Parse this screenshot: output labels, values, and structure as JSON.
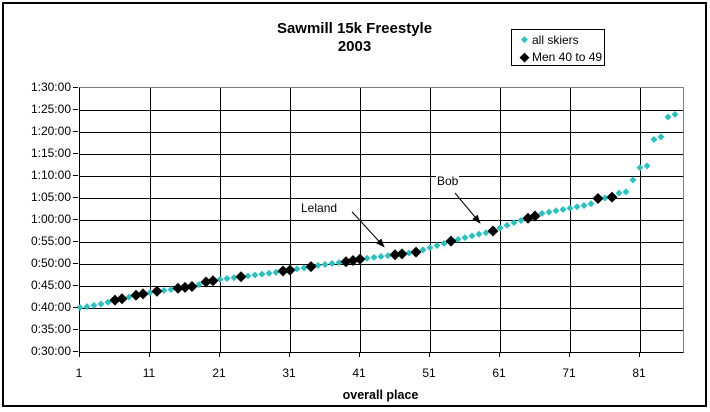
{
  "chart": {
    "title_line1": "Sawmill 15k Freestyle",
    "title_line2": "2003",
    "x_axis_title": "overall place",
    "legend": {
      "position": "top-right",
      "items": [
        {
          "label": "all skiers",
          "marker": "small-diamond",
          "color": "#2FBFBF"
        },
        {
          "label": "Men 40 to 49",
          "marker": "large-diamond",
          "color": "#000000"
        }
      ]
    },
    "colors": {
      "all_skiers": "#2FBFBF",
      "men_40_49": "#000000",
      "gridline": "#000000",
      "plot_border": "#808080",
      "frame_border": "#000000"
    }
  },
  "chart_data": {
    "type": "scatter",
    "title": "Sawmill 15k Freestyle 2003",
    "xlabel": "overall place",
    "ylabel": "",
    "grid": true,
    "legend_position": "top-right",
    "xlim": [
      1,
      87
    ],
    "ylim_minutes": [
      30,
      90
    ],
    "x_ticks": [
      1,
      11,
      21,
      31,
      41,
      51,
      61,
      71,
      81
    ],
    "y_tick_minutes": [
      90,
      85,
      80,
      75,
      70,
      65,
      60,
      55,
      50,
      45,
      40,
      35,
      30
    ],
    "y_tick_labels": [
      "1:30:00",
      "1:25:00",
      "1:20:00",
      "1:15:00",
      "1:10:00",
      "1:05:00",
      "1:00:00",
      "0:55:00",
      "0:50:00",
      "0:45:00",
      "0:40:00",
      "0:35:00",
      "0:30:00"
    ],
    "series": [
      {
        "name": "all skiers",
        "color": "#2FBFBF",
        "marker": "small-diamond",
        "x": [
          1,
          2,
          3,
          4,
          5,
          6,
          7,
          8,
          9,
          10,
          11,
          12,
          13,
          14,
          15,
          16,
          17,
          18,
          19,
          20,
          21,
          22,
          23,
          24,
          25,
          26,
          27,
          28,
          29,
          30,
          31,
          32,
          33,
          34,
          35,
          36,
          37,
          38,
          39,
          40,
          41,
          42,
          43,
          44,
          45,
          46,
          47,
          48,
          49,
          50,
          51,
          52,
          53,
          54,
          55,
          56,
          57,
          58,
          59,
          60,
          61,
          62,
          63,
          64,
          65,
          66,
          67,
          68,
          69,
          70,
          71,
          72,
          73,
          74,
          75,
          76,
          77,
          78,
          79,
          80,
          81,
          82,
          83,
          84,
          85,
          86
        ],
        "y_minutes": [
          40.1,
          40.3,
          40.6,
          40.9,
          41.3,
          41.8,
          42.1,
          42.5,
          42.9,
          43.2,
          43.5,
          43.8,
          44.0,
          44.2,
          44.5,
          44.7,
          44.9,
          45.3,
          45.9,
          46.2,
          46.5,
          46.7,
          46.9,
          47.1,
          47.3,
          47.5,
          47.7,
          47.9,
          48.1,
          48.4,
          48.6,
          48.9,
          49.1,
          49.4,
          49.7,
          49.9,
          50.1,
          50.3,
          50.5,
          50.8,
          51.1,
          51.3,
          51.5,
          51.7,
          51.9,
          52.1,
          52.3,
          52.5,
          52.7,
          53.2,
          53.7,
          54.2,
          54.7,
          55.2,
          55.6,
          56.0,
          56.4,
          56.8,
          57.1,
          57.5,
          58.2,
          58.8,
          59.4,
          59.9,
          60.4,
          60.9,
          61.5,
          61.8,
          62.1,
          62.4,
          62.7,
          63.0,
          63.3,
          63.7,
          64.9,
          65.0,
          65.2,
          66.1,
          66.4,
          69.1,
          71.9,
          72.3,
          78.3,
          78.9,
          83.4,
          84.0
        ]
      },
      {
        "name": "Men 40 to 49",
        "color": "#000000",
        "marker": "large-diamond",
        "x": [
          6,
          7,
          9,
          10,
          12,
          15,
          16,
          17,
          19,
          20,
          24,
          30,
          31,
          34,
          39,
          40,
          41,
          46,
          47,
          49,
          54,
          60,
          65,
          66,
          75,
          77
        ],
        "y_minutes": [
          41.8,
          42.1,
          42.9,
          43.2,
          43.8,
          44.5,
          44.7,
          44.9,
          45.9,
          46.2,
          47.1,
          48.4,
          48.6,
          49.4,
          50.5,
          50.8,
          51.1,
          52.1,
          52.3,
          52.7,
          55.2,
          57.5,
          60.4,
          60.9,
          64.9,
          65.2
        ]
      }
    ],
    "annotations": [
      {
        "label": "Leland",
        "place": 46,
        "time_minutes": 52.1
      },
      {
        "label": "Bob",
        "place": 60,
        "time_minutes": 57.5
      }
    ]
  }
}
